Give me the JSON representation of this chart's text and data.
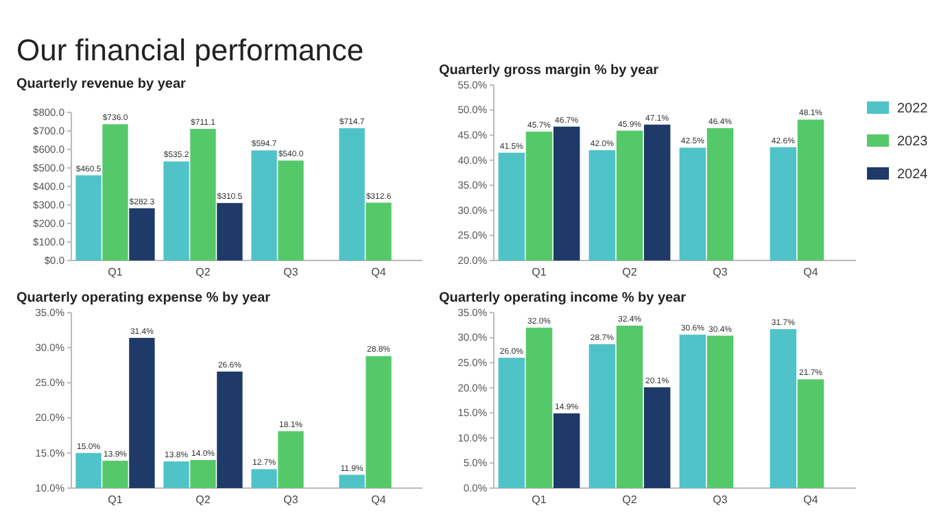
{
  "chart_data": [
    {
      "type": "bar",
      "title": "Our financial performance",
      "subtitle": "Quarterly revenue by year",
      "categories": [
        "Q1",
        "Q2",
        "Q3",
        "Q4"
      ],
      "ylim": [
        0,
        800
      ],
      "yticks": [
        {
          "value": 0,
          "label": "$0.0"
        },
        {
          "value": 100,
          "label": "$100.0"
        },
        {
          "value": 200,
          "label": "$200.0"
        },
        {
          "value": 300,
          "label": "$300.0"
        },
        {
          "value": 400,
          "label": "$400.0"
        },
        {
          "value": 500,
          "label": "$500.0"
        },
        {
          "value": 600,
          "label": "$600.0"
        },
        {
          "value": 700,
          "label": "$700.0"
        },
        {
          "value": 800,
          "label": "$800.0"
        }
      ],
      "grid": false,
      "legend": false,
      "series": [
        {
          "color": "#4fc3c8",
          "values": [
            460.5,
            535.2,
            594.7,
            714.7
          ],
          "value_labels": [
            "$460.5",
            "$535.2",
            "$594.7",
            "$714.7"
          ]
        },
        {
          "color": "#55c96a",
          "values": [
            736.0,
            711.1,
            540.0,
            312.6
          ],
          "value_labels": [
            "$736.0",
            "$711.1",
            "$540.0",
            "$312.6"
          ]
        },
        {
          "color": "#1f3a68",
          "values": [
            282.3,
            310.5,
            null,
            null
          ],
          "value_labels": [
            "$282.3",
            "$310.5",
            null,
            null
          ]
        }
      ]
    },
    {
      "type": "bar",
      "title": "Quarterly gross margin % by year",
      "categories": [
        "Q1",
        "Q2",
        "Q3",
        "Q4"
      ],
      "ylim": [
        20,
        55
      ],
      "yticks": [
        {
          "value": 20,
          "label": "20.0%"
        },
        {
          "value": 25,
          "label": "25.0%"
        },
        {
          "value": 30,
          "label": "30.0%"
        },
        {
          "value": 35,
          "label": "35.0%"
        },
        {
          "value": 40,
          "label": "40.0%"
        },
        {
          "value": 45,
          "label": "45.0%"
        },
        {
          "value": 50,
          "label": "50.0%"
        },
        {
          "value": 55,
          "label": "55.0%"
        }
      ],
      "grid": false,
      "legend": "right",
      "series": [
        {
          "name": "2022",
          "color": "#4fc3c8",
          "values": [
            41.5,
            42.0,
            42.5,
            42.6
          ],
          "value_labels": [
            "41.5%",
            "42.0%",
            "42.5%",
            "42.6%"
          ]
        },
        {
          "name": "2023",
          "color": "#55c96a",
          "values": [
            45.7,
            45.9,
            46.4,
            48.1
          ],
          "value_labels": [
            "45.7%",
            "45.9%",
            "46.4%",
            "48.1%"
          ]
        },
        {
          "name": "2024",
          "color": "#1f3a68",
          "values": [
            46.7,
            47.1,
            null,
            null
          ],
          "value_labels": [
            "46.7%",
            "47.1%",
            null,
            null
          ]
        }
      ]
    },
    {
      "type": "bar",
      "title": "Quarterly operating expense % by year",
      "categories": [
        "Q1",
        "Q2",
        "Q3",
        "Q4"
      ],
      "ylim": [
        10,
        35
      ],
      "yticks": [
        {
          "value": 10,
          "label": "10.0%"
        },
        {
          "value": 15,
          "label": "15.0%"
        },
        {
          "value": 20,
          "label": "20.0%"
        },
        {
          "value": 25,
          "label": "25.0%"
        },
        {
          "value": 30,
          "label": "30.0%"
        },
        {
          "value": 35,
          "label": "35.0%"
        }
      ],
      "grid": false,
      "legend": false,
      "series": [
        {
          "color": "#4fc3c8",
          "values": [
            15.0,
            13.8,
            12.7,
            11.9
          ],
          "value_labels": [
            "15.0%",
            "13.8%",
            "12.7%",
            "11.9%"
          ]
        },
        {
          "color": "#55c96a",
          "values": [
            13.9,
            14.0,
            18.1,
            28.8
          ],
          "value_labels": [
            "13.9%",
            "14.0%",
            "18.1%",
            "28.8%"
          ]
        },
        {
          "color": "#1f3a68",
          "values": [
            31.4,
            26.6,
            null,
            null
          ],
          "value_labels": [
            "31.4%",
            "26.6%",
            null,
            null
          ]
        }
      ]
    },
    {
      "type": "bar",
      "title": "Quarterly operating income % by year",
      "categories": [
        "Q1",
        "Q2",
        "Q3",
        "Q4"
      ],
      "ylim": [
        0,
        35
      ],
      "yticks": [
        {
          "value": 0,
          "label": "0.0%"
        },
        {
          "value": 5,
          "label": "5.0%"
        },
        {
          "value": 10,
          "label": "10.0%"
        },
        {
          "value": 15,
          "label": "15.0%"
        },
        {
          "value": 20,
          "label": "20.0%"
        },
        {
          "value": 25,
          "label": "25.0%"
        },
        {
          "value": 30,
          "label": "30.0%"
        },
        {
          "value": 35,
          "label": "35.0%"
        }
      ],
      "grid": false,
      "legend": false,
      "series": [
        {
          "color": "#4fc3c8",
          "values": [
            26.0,
            28.7,
            30.6,
            31.7
          ],
          "value_labels": [
            "26.0%",
            "28.7%",
            "30.6%",
            "31.7%"
          ]
        },
        {
          "color": "#55c96a",
          "values": [
            32.0,
            32.4,
            30.4,
            21.7
          ],
          "value_labels": [
            "32.0%",
            "32.4%",
            "30.4%",
            "21.7%"
          ]
        },
        {
          "color": "#1f3a68",
          "values": [
            14.9,
            20.1,
            null,
            null
          ],
          "value_labels": [
            "14.9%",
            "20.1%",
            null,
            null
          ]
        }
      ]
    }
  ]
}
